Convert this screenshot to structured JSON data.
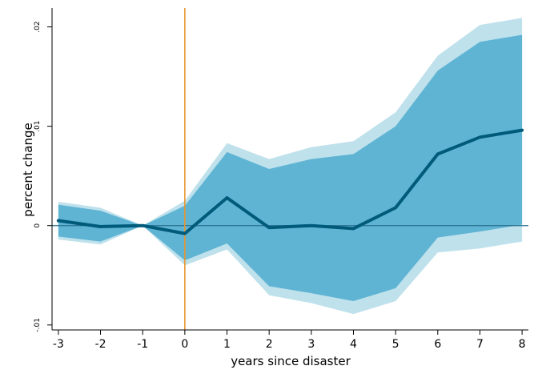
{
  "chart_data": {
    "type": "line",
    "xlabel": "years since disaster",
    "ylabel": "percent change",
    "x": [
      -3,
      -2,
      -1,
      0,
      1,
      2,
      3,
      4,
      5,
      6,
      7,
      8
    ],
    "xticks": [
      "-3",
      "-2",
      "-1",
      "0",
      "1",
      "2",
      "3",
      "4",
      "5",
      "6",
      "7",
      "8"
    ],
    "yticks": [
      {
        "value": -0.01,
        "label": "-.01"
      },
      {
        "value": 0,
        "label": "0"
      },
      {
        "value": 0.01,
        "label": ".01"
      },
      {
        "value": 0.02,
        "label": ".02"
      }
    ],
    "xlim": [
      -3.15,
      8.15
    ],
    "ylim": [
      -0.0105,
      0.0219
    ],
    "reference_lines": {
      "vertical_x": 0,
      "horizontal_y": 0,
      "vertical_color": "#e8962f",
      "horizontal_color": "#2a6f8f"
    },
    "series": [
      {
        "role": "point_estimate",
        "color": "#005a7a",
        "values": [
          0.0005,
          -0.0001,
          0.0,
          -0.0008,
          0.0028,
          -0.0002,
          0.0,
          -0.0003,
          0.0018,
          0.0072,
          0.0089,
          0.0096
        ]
      }
    ],
    "bands": [
      {
        "role": "outer_ci",
        "color": "#bfe1ec",
        "upper": [
          0.0024,
          0.0018,
          0.0,
          0.0025,
          0.0083,
          0.0067,
          0.0079,
          0.0085,
          0.0114,
          0.0171,
          0.0202,
          0.0209
        ],
        "lower": [
          -0.0014,
          -0.0019,
          0.0,
          -0.004,
          -0.0024,
          -0.007,
          -0.0078,
          -0.0089,
          -0.0076,
          -0.0027,
          -0.0023,
          -0.0016
        ]
      },
      {
        "role": "inner_ci",
        "color": "#5fb4d4",
        "upper": [
          0.0021,
          0.0015,
          0.0,
          0.002,
          0.0074,
          0.0057,
          0.0067,
          0.0072,
          0.01,
          0.0156,
          0.0185,
          0.0192
        ],
        "lower": [
          -0.0011,
          -0.0016,
          0.0,
          -0.0035,
          -0.0018,
          -0.0061,
          -0.0068,
          -0.0076,
          -0.0063,
          -0.0012,
          -0.0006,
          0.0001
        ]
      }
    ],
    "grid": false,
    "legend": "none"
  }
}
